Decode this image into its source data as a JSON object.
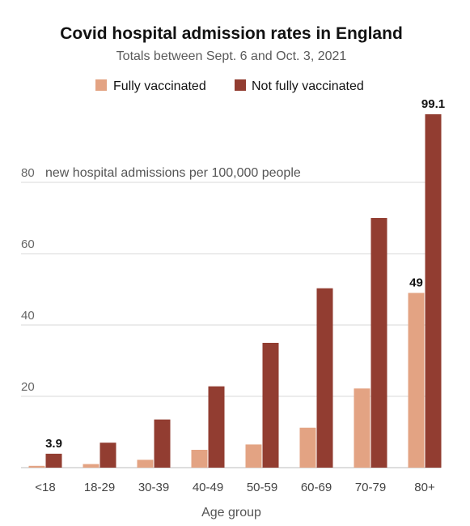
{
  "chart_data": {
    "type": "bar",
    "title": "Covid hospital admission rates in England",
    "subtitle": "Totals between Sept. 6 and Oct. 3, 2021",
    "xlabel": "Age group",
    "ylabel": "new hospital admissions per 100,000 people",
    "ylim": [
      0,
      100
    ],
    "yticks": [
      20,
      40,
      60,
      80
    ],
    "ytick_labels": [
      "20",
      "40",
      "60",
      "80"
    ],
    "categories": [
      "<18",
      "18-29",
      "30-39",
      "40-49",
      "50-59",
      "60-69",
      "70-79",
      "80+"
    ],
    "series": [
      {
        "name": "Fully vaccinated",
        "color": "#e3a383",
        "values": [
          0.5,
          1.0,
          2.2,
          5.0,
          6.5,
          11.2,
          22.2,
          49
        ]
      },
      {
        "name": "Not fully vaccinated",
        "color": "#923d31",
        "values": [
          3.9,
          7.0,
          13.5,
          22.8,
          35.0,
          50.3,
          70.0,
          99.1
        ]
      }
    ],
    "data_labels": [
      {
        "series": 1,
        "index": 0,
        "text": "3.9"
      },
      {
        "series": 0,
        "index": 7,
        "text": "49"
      },
      {
        "series": 1,
        "index": 7,
        "text": "99.1"
      }
    ],
    "grid": true,
    "legend_position": "top-center"
  }
}
